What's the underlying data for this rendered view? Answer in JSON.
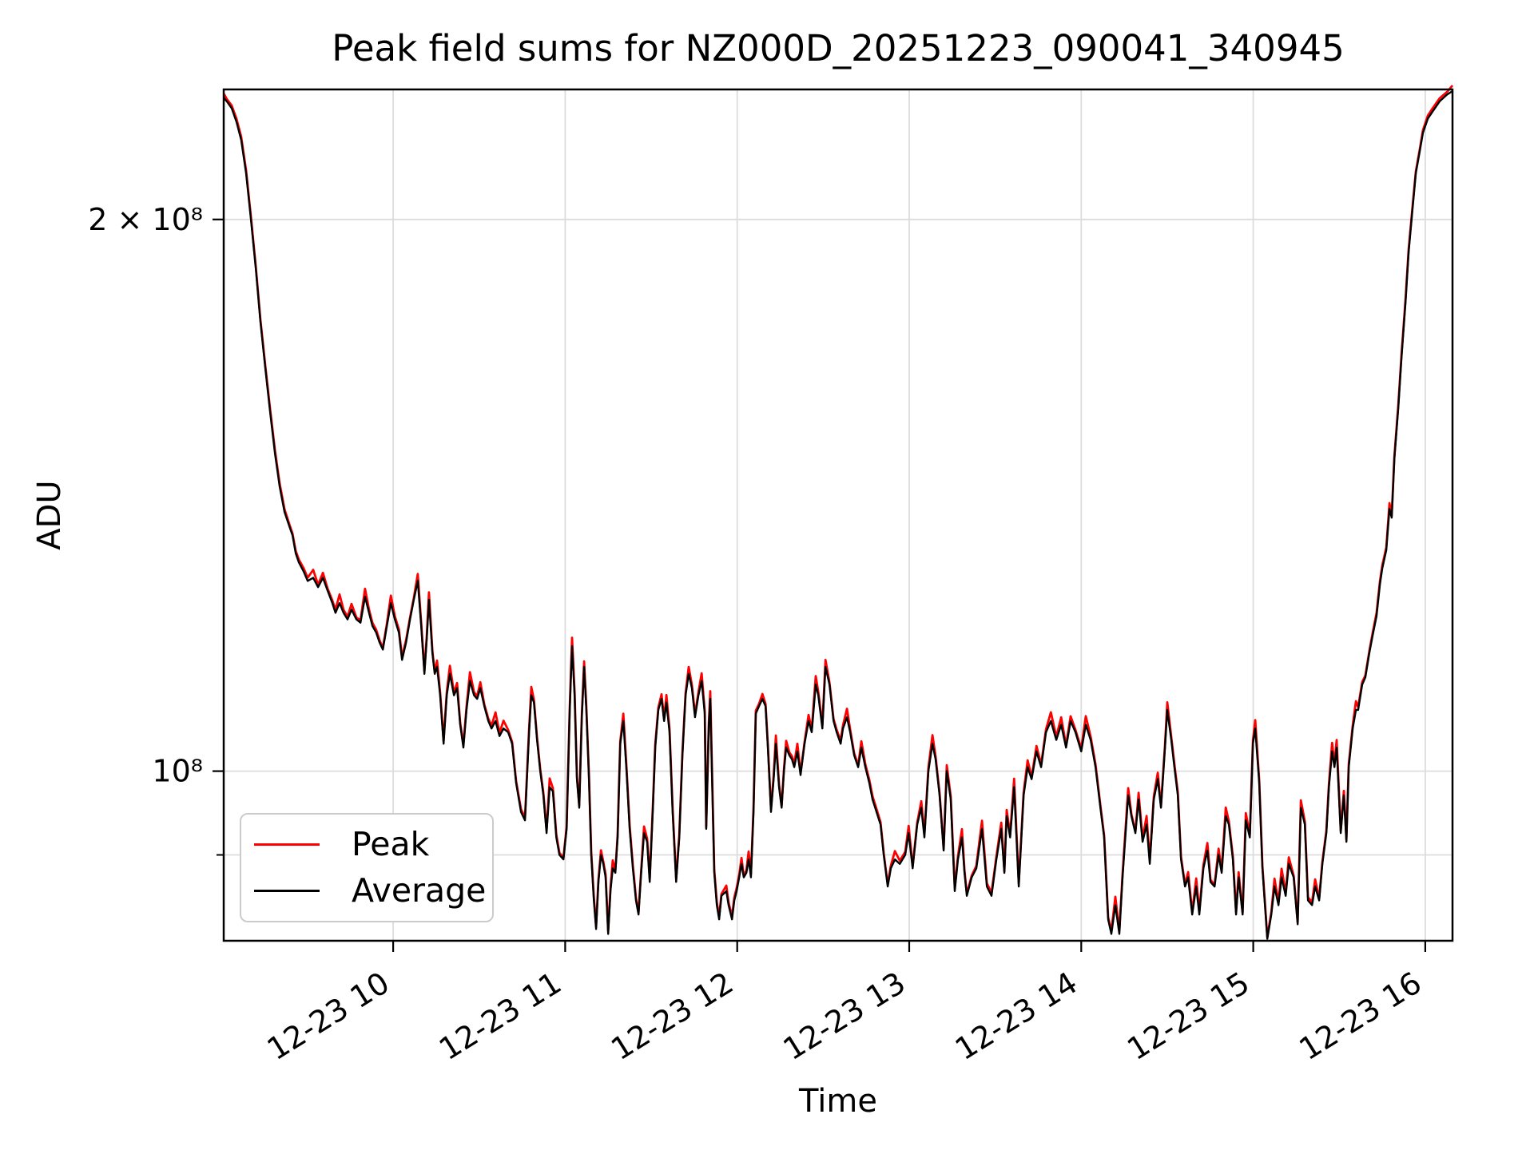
{
  "figure": {
    "title": "Peak field sums for NZ000D_20251223_090041_340945"
  },
  "axes": {
    "xlabel": "Time",
    "ylabel": "ADU",
    "x_ticks": [
      {
        "t": 60,
        "label": "12-23 10"
      },
      {
        "t": 120,
        "label": "12-23 11"
      },
      {
        "t": 180,
        "label": "12-23 12"
      },
      {
        "t": 240,
        "label": "12-23 13"
      },
      {
        "t": 300,
        "label": "12-23 14"
      },
      {
        "t": 360,
        "label": "12-23 15"
      },
      {
        "t": 420,
        "label": "12-23 16"
      }
    ],
    "y_ticks": [
      {
        "value": 200000000,
        "label": "2 × 10⁸"
      },
      {
        "value": 100000000,
        "label": "10⁸"
      }
    ],
    "y_minor_ticks": [
      90000000
    ],
    "y_gridlines": [
      200000000,
      100000000,
      90000000
    ],
    "x_unit": "minutes after 09:00 on 12-23",
    "grid_color": "#dcdcdc",
    "frame_color": "#000000"
  },
  "legend": {
    "entries": [
      {
        "label": "Peak",
        "color": "#ff0000"
      },
      {
        "label": "Average",
        "color": "#000000"
      }
    ]
  },
  "chart_data": {
    "type": "line",
    "title": "Peak field sums for NZ000D_20251223_090041_340945",
    "xlabel": "Time",
    "ylabel": "ADU",
    "x_range": [
      0.9,
      429.5
    ],
    "ylim": [
      80800000,
      235500000
    ],
    "yscale": "log",
    "scale": 100000000,
    "legend_position": "lower left",
    "grid": "both",
    "series_note": "Average series digitized as [minutes_after_0900, ADU/1e8]; Peak hugs Average from above, visible mostly at spike tips",
    "peak_model": {
      "derived_from": "Average",
      "base_factor": 1.002,
      "peak_extra_factor": 0.009
    },
    "average_points": [
      [
        0.9,
        2.33
      ],
      [
        2.0,
        2.32
      ],
      [
        3.7,
        2.3
      ],
      [
        5.4,
        2.26
      ],
      [
        7.0,
        2.21
      ],
      [
        8.7,
        2.12
      ],
      [
        10.4,
        2.0
      ],
      [
        12.1,
        1.88
      ],
      [
        13.7,
        1.76
      ],
      [
        15.4,
        1.66
      ],
      [
        17.1,
        1.57
      ],
      [
        18.8,
        1.49
      ],
      [
        20.4,
        1.43
      ],
      [
        22.1,
        1.385
      ],
      [
        23.8,
        1.36
      ],
      [
        24.9,
        1.345
      ],
      [
        26.0,
        1.315
      ],
      [
        27.1,
        1.3
      ],
      [
        28.8,
        1.285
      ],
      [
        30.2,
        1.27
      ],
      [
        32.1,
        1.275
      ],
      [
        33.8,
        1.26
      ],
      [
        35.5,
        1.275
      ],
      [
        37.1,
        1.255
      ],
      [
        38.8,
        1.235
      ],
      [
        39.9,
        1.22
      ],
      [
        41.3,
        1.235
      ],
      [
        42.7,
        1.22
      ],
      [
        44.1,
        1.21
      ],
      [
        45.5,
        1.225
      ],
      [
        47.2,
        1.21
      ],
      [
        48.6,
        1.205
      ],
      [
        50.2,
        1.245
      ],
      [
        51.6,
        1.22
      ],
      [
        52.8,
        1.2
      ],
      [
        54.1,
        1.19
      ],
      [
        55.3,
        1.175
      ],
      [
        56.4,
        1.165
      ],
      [
        57.8,
        1.2
      ],
      [
        59.2,
        1.235
      ],
      [
        60.6,
        1.21
      ],
      [
        62.0,
        1.19
      ],
      [
        63.1,
        1.15
      ],
      [
        64.5,
        1.175
      ],
      [
        65.9,
        1.21
      ],
      [
        67.2,
        1.24
      ],
      [
        68.6,
        1.27
      ],
      [
        69.8,
        1.2
      ],
      [
        70.9,
        1.13
      ],
      [
        71.7,
        1.18
      ],
      [
        72.5,
        1.24
      ],
      [
        73.7,
        1.16
      ],
      [
        74.5,
        1.13
      ],
      [
        75.3,
        1.14
      ],
      [
        76.4,
        1.1
      ],
      [
        77.6,
        1.035
      ],
      [
        78.7,
        1.1
      ],
      [
        79.8,
        1.13
      ],
      [
        81.2,
        1.1
      ],
      [
        82.3,
        1.11
      ],
      [
        83.4,
        1.06
      ],
      [
        84.5,
        1.03
      ],
      [
        85.6,
        1.08
      ],
      [
        86.8,
        1.12
      ],
      [
        88.2,
        1.1
      ],
      [
        89.3,
        1.095
      ],
      [
        90.4,
        1.11
      ],
      [
        91.8,
        1.085
      ],
      [
        93.2,
        1.065
      ],
      [
        94.3,
        1.055
      ],
      [
        95.7,
        1.065
      ],
      [
        97.1,
        1.045
      ],
      [
        98.5,
        1.055
      ],
      [
        100.1,
        1.05
      ],
      [
        101.5,
        1.035
      ],
      [
        102.9,
        0.985
      ],
      [
        104.6,
        0.95
      ],
      [
        106.0,
        0.94
      ],
      [
        107.4,
        1.05
      ],
      [
        108.2,
        1.1
      ],
      [
        109.1,
        1.09
      ],
      [
        110.2,
        1.04
      ],
      [
        111.3,
        1.0
      ],
      [
        112.4,
        0.97
      ],
      [
        113.5,
        0.925
      ],
      [
        114.6,
        0.98
      ],
      [
        115.7,
        0.975
      ],
      [
        116.9,
        0.92
      ],
      [
        118.0,
        0.9
      ],
      [
        119.4,
        0.895
      ],
      [
        120.5,
        0.93
      ],
      [
        121.6,
        1.08
      ],
      [
        122.4,
        1.17
      ],
      [
        123.3,
        1.1
      ],
      [
        124.1,
        0.99
      ],
      [
        124.9,
        0.955
      ],
      [
        125.8,
        1.07
      ],
      [
        126.6,
        1.14
      ],
      [
        127.4,
        1.08
      ],
      [
        128.3,
        0.99
      ],
      [
        129.1,
        0.9
      ],
      [
        130.0,
        0.85
      ],
      [
        130.8,
        0.82
      ],
      [
        131.6,
        0.87
      ],
      [
        132.5,
        0.9
      ],
      [
        133.3,
        0.89
      ],
      [
        134.1,
        0.875
      ],
      [
        135.0,
        0.815
      ],
      [
        135.8,
        0.86
      ],
      [
        136.6,
        0.885
      ],
      [
        137.5,
        0.88
      ],
      [
        138.3,
        0.92
      ],
      [
        139.2,
        1.035
      ],
      [
        140.3,
        1.065
      ],
      [
        141.4,
        1.0
      ],
      [
        142.5,
        0.93
      ],
      [
        143.6,
        0.885
      ],
      [
        144.7,
        0.85
      ],
      [
        145.6,
        0.835
      ],
      [
        146.4,
        0.875
      ],
      [
        147.5,
        0.925
      ],
      [
        148.6,
        0.915
      ],
      [
        149.5,
        0.87
      ],
      [
        150.6,
        0.955
      ],
      [
        151.4,
        1.03
      ],
      [
        152.5,
        1.08
      ],
      [
        153.6,
        1.095
      ],
      [
        154.5,
        1.065
      ],
      [
        155.3,
        1.09
      ],
      [
        156.4,
        1.05
      ],
      [
        157.5,
        0.95
      ],
      [
        158.7,
        0.87
      ],
      [
        159.8,
        0.92
      ],
      [
        160.9,
        1.02
      ],
      [
        162.0,
        1.1
      ],
      [
        163.1,
        1.13
      ],
      [
        164.2,
        1.11
      ],
      [
        165.3,
        1.07
      ],
      [
        166.5,
        1.1
      ],
      [
        167.6,
        1.12
      ],
      [
        168.7,
        1.075
      ],
      [
        169.2,
        0.93
      ],
      [
        170.1,
        1.06
      ],
      [
        170.6,
        1.095
      ],
      [
        171.2,
        1.0
      ],
      [
        172.0,
        0.88
      ],
      [
        172.9,
        0.845
      ],
      [
        173.7,
        0.83
      ],
      [
        174.5,
        0.855
      ],
      [
        176.2,
        0.86
      ],
      [
        177.0,
        0.845
      ],
      [
        178.2,
        0.83
      ],
      [
        179.0,
        0.85
      ],
      [
        179.8,
        0.86
      ],
      [
        180.7,
        0.875
      ],
      [
        181.5,
        0.89
      ],
      [
        182.3,
        0.875
      ],
      [
        183.2,
        0.88
      ],
      [
        184.0,
        0.895
      ],
      [
        184.8,
        0.875
      ],
      [
        185.7,
        0.95
      ],
      [
        186.5,
        1.075
      ],
      [
        187.6,
        1.085
      ],
      [
        188.8,
        1.095
      ],
      [
        189.9,
        1.085
      ],
      [
        190.7,
        1.03
      ],
      [
        191.8,
        0.95
      ],
      [
        192.7,
        0.99
      ],
      [
        193.5,
        1.035
      ],
      [
        194.6,
        0.98
      ],
      [
        195.5,
        0.955
      ],
      [
        196.3,
        1.0
      ],
      [
        197.1,
        1.03
      ],
      [
        198.2,
        1.02
      ],
      [
        199.1,
        1.015
      ],
      [
        199.9,
        1.005
      ],
      [
        201.0,
        1.025
      ],
      [
        202.1,
        0.995
      ],
      [
        203.5,
        1.035
      ],
      [
        204.9,
        1.065
      ],
      [
        206.0,
        1.05
      ],
      [
        207.4,
        1.115
      ],
      [
        208.3,
        1.1
      ],
      [
        209.7,
        1.055
      ],
      [
        210.8,
        1.14
      ],
      [
        212.2,
        1.115
      ],
      [
        213.6,
        1.065
      ],
      [
        214.7,
        1.05
      ],
      [
        216.1,
        1.035
      ],
      [
        216.9,
        1.055
      ],
      [
        218.3,
        1.07
      ],
      [
        219.4,
        1.05
      ],
      [
        220.8,
        1.02
      ],
      [
        222.2,
        1.005
      ],
      [
        223.3,
        1.03
      ],
      [
        224.7,
        1.005
      ],
      [
        226.1,
        0.985
      ],
      [
        227.2,
        0.965
      ],
      [
        228.6,
        0.95
      ],
      [
        230.0,
        0.935
      ],
      [
        231.1,
        0.9
      ],
      [
        232.5,
        0.865
      ],
      [
        233.6,
        0.885
      ],
      [
        235.0,
        0.895
      ],
      [
        236.7,
        0.89
      ],
      [
        238.6,
        0.9
      ],
      [
        239.8,
        0.925
      ],
      [
        241.2,
        0.885
      ],
      [
        242.8,
        0.935
      ],
      [
        244.2,
        0.955
      ],
      [
        245.3,
        0.92
      ],
      [
        246.7,
        1.0
      ],
      [
        248.1,
        1.035
      ],
      [
        249.2,
        1.015
      ],
      [
        250.6,
        0.97
      ],
      [
        252.0,
        0.905
      ],
      [
        253.1,
        1.0
      ],
      [
        254.5,
        0.965
      ],
      [
        255.9,
        0.86
      ],
      [
        257.0,
        0.895
      ],
      [
        258.4,
        0.92
      ],
      [
        259.3,
        0.88
      ],
      [
        260.1,
        0.855
      ],
      [
        261.8,
        0.875
      ],
      [
        263.4,
        0.885
      ],
      [
        265.4,
        0.93
      ],
      [
        267.1,
        0.865
      ],
      [
        268.7,
        0.855
      ],
      [
        270.4,
        0.895
      ],
      [
        272.1,
        0.93
      ],
      [
        273.2,
        0.88
      ],
      [
        274.0,
        0.945
      ],
      [
        275.2,
        0.92
      ],
      [
        276.6,
        0.98
      ],
      [
        278.2,
        0.865
      ],
      [
        279.9,
        0.97
      ],
      [
        281.3,
        1.005
      ],
      [
        282.7,
        0.99
      ],
      [
        284.4,
        1.025
      ],
      [
        286.0,
        1.005
      ],
      [
        287.7,
        1.05
      ],
      [
        289.4,
        1.065
      ],
      [
        291.3,
        1.04
      ],
      [
        293.0,
        1.06
      ],
      [
        294.7,
        1.03
      ],
      [
        296.3,
        1.065
      ],
      [
        298.0,
        1.05
      ],
      [
        300.0,
        1.025
      ],
      [
        301.6,
        1.06
      ],
      [
        303.3,
        1.04
      ],
      [
        305.0,
        1.005
      ],
      [
        306.7,
        0.955
      ],
      [
        308.0,
        0.92
      ],
      [
        309.4,
        0.83
      ],
      [
        310.5,
        0.815
      ],
      [
        311.9,
        0.845
      ],
      [
        313.3,
        0.815
      ],
      [
        314.4,
        0.875
      ],
      [
        316.4,
        0.97
      ],
      [
        317.5,
        0.945
      ],
      [
        318.9,
        0.925
      ],
      [
        320.0,
        0.965
      ],
      [
        321.4,
        0.915
      ],
      [
        322.8,
        0.935
      ],
      [
        323.9,
        0.89
      ],
      [
        325.3,
        0.965
      ],
      [
        326.7,
        0.99
      ],
      [
        327.8,
        0.955
      ],
      [
        329.2,
        1.03
      ],
      [
        330.0,
        1.08
      ],
      [
        331.4,
        1.04
      ],
      [
        332.5,
        1.005
      ],
      [
        333.7,
        0.97
      ],
      [
        334.8,
        0.895
      ],
      [
        336.2,
        0.865
      ],
      [
        337.3,
        0.875
      ],
      [
        338.7,
        0.835
      ],
      [
        340.1,
        0.865
      ],
      [
        341.2,
        0.835
      ],
      [
        342.6,
        0.885
      ],
      [
        344.0,
        0.905
      ],
      [
        345.1,
        0.87
      ],
      [
        346.5,
        0.865
      ],
      [
        347.9,
        0.9
      ],
      [
        349.0,
        0.88
      ],
      [
        350.4,
        0.945
      ],
      [
        351.5,
        0.935
      ],
      [
        352.9,
        0.895
      ],
      [
        354.0,
        0.835
      ],
      [
        354.9,
        0.875
      ],
      [
        356.3,
        0.835
      ],
      [
        357.4,
        0.94
      ],
      [
        358.8,
        0.92
      ],
      [
        359.9,
        1.035
      ],
      [
        360.7,
        1.055
      ],
      [
        362.1,
        0.985
      ],
      [
        363.2,
        0.885
      ],
      [
        364.9,
        0.81
      ],
      [
        366.3,
        0.835
      ],
      [
        367.4,
        0.865
      ],
      [
        368.8,
        0.845
      ],
      [
        369.9,
        0.875
      ],
      [
        371.3,
        0.855
      ],
      [
        372.4,
        0.89
      ],
      [
        374.1,
        0.875
      ],
      [
        375.5,
        0.825
      ],
      [
        376.6,
        0.955
      ],
      [
        378.0,
        0.935
      ],
      [
        379.1,
        0.85
      ],
      [
        380.5,
        0.845
      ],
      [
        381.6,
        0.865
      ],
      [
        383.0,
        0.85
      ],
      [
        384.1,
        0.89
      ],
      [
        385.5,
        0.925
      ],
      [
        386.4,
        0.98
      ],
      [
        387.5,
        1.025
      ],
      [
        388.3,
        1.005
      ],
      [
        389.1,
        1.03
      ],
      [
        390.5,
        0.925
      ],
      [
        391.6,
        0.97
      ],
      [
        392.5,
        0.915
      ],
      [
        393.3,
        1.005
      ],
      [
        394.7,
        1.055
      ],
      [
        395.8,
        1.08
      ],
      [
        396.6,
        1.08
      ],
      [
        398.0,
        1.115
      ],
      [
        399.1,
        1.125
      ],
      [
        400.5,
        1.16
      ],
      [
        401.6,
        1.185
      ],
      [
        403.0,
        1.215
      ],
      [
        404.2,
        1.265
      ],
      [
        405.0,
        1.29
      ],
      [
        406.4,
        1.32
      ],
      [
        407.5,
        1.39
      ],
      [
        408.3,
        1.375
      ],
      [
        409.2,
        1.48
      ],
      [
        410.6,
        1.58
      ],
      [
        411.7,
        1.68
      ],
      [
        413.1,
        1.8
      ],
      [
        414.2,
        1.92
      ],
      [
        415.6,
        2.03
      ],
      [
        416.7,
        2.12
      ],
      [
        418.1,
        2.18
      ],
      [
        419.2,
        2.23
      ],
      [
        420.9,
        2.27
      ],
      [
        422.5,
        2.29
      ],
      [
        425.0,
        2.32
      ],
      [
        427.6,
        2.34
      ],
      [
        429.5,
        2.35
      ]
    ]
  }
}
